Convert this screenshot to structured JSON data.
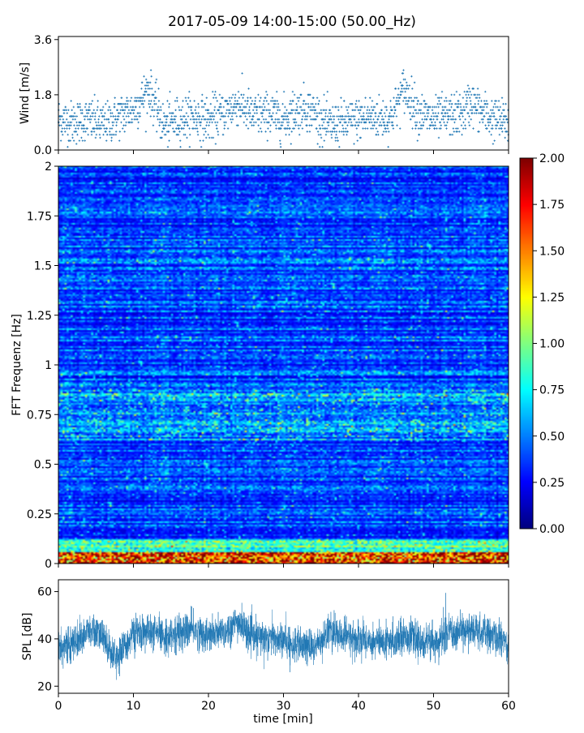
{
  "chart_data": [
    {
      "type": "scatter",
      "title": "2017-05-09 14:00-15:00 (50.00_Hz)",
      "ylabel": "Wind [m/s]",
      "xlim": [
        0,
        60
      ],
      "ylim": [
        0,
        3.7
      ],
      "yticks": [
        "0.0",
        "1.8",
        "3.6"
      ],
      "color": "#1f77b4",
      "series_profile": {
        "x": [
          0,
          2,
          4,
          6,
          8,
          10,
          11,
          12,
          13,
          14,
          16,
          18,
          20,
          22,
          24,
          26,
          28,
          30,
          32,
          33,
          34,
          36,
          38,
          40,
          42,
          44,
          45,
          46,
          47,
          48,
          50,
          52,
          54,
          55,
          56,
          58,
          60
        ],
        "y": [
          1.0,
          0.9,
          1.0,
          0.8,
          1.1,
          1.3,
          1.6,
          2.0,
          1.4,
          0.8,
          1.0,
          1.1,
          1.0,
          1.2,
          1.5,
          1.1,
          1.2,
          1.0,
          1.3,
          1.4,
          1.2,
          0.8,
          0.9,
          1.0,
          1.1,
          1.0,
          1.4,
          2.0,
          1.6,
          1.2,
          1.0,
          1.1,
          1.2,
          1.6,
          1.3,
          1.0,
          0.9
        ]
      }
    },
    {
      "type": "heatmap",
      "ylabel": "FFT Frequenz [Hz]",
      "xlim": [
        0,
        60
      ],
      "ylim": [
        0,
        2
      ],
      "yticks": [
        "0",
        "0.25",
        "0.5",
        "0.75",
        "1",
        "1.25",
        "1.5",
        "1.75",
        "2"
      ],
      "colorbar": {
        "min": 0,
        "max": 2,
        "ticks": [
          "0.00",
          "0.25",
          "0.50",
          "0.75",
          "1.00",
          "1.25",
          "1.50",
          "1.75",
          "2.00"
        ],
        "colormap": "jet"
      }
    },
    {
      "type": "line",
      "ylabel": "SPL [dB]",
      "xlabel": "time [min]",
      "xlim": [
        0,
        60
      ],
      "ylim": [
        17,
        65
      ],
      "yticks": [
        "20",
        "40",
        "60"
      ],
      "xticks": [
        "0",
        "10",
        "20",
        "30",
        "40",
        "50",
        "60"
      ],
      "color": "#1f77b4",
      "series_profile": {
        "x": [
          0,
          2,
          4,
          6,
          7,
          8,
          10,
          12,
          14,
          16,
          18,
          20,
          22,
          24,
          26,
          28,
          30,
          32,
          34,
          36,
          38,
          40,
          42,
          44,
          46,
          48,
          50,
          52,
          54,
          56,
          58,
          60
        ],
        "y": [
          36,
          38,
          43,
          41,
          34,
          33,
          42,
          43,
          41,
          42,
          44,
          41,
          43,
          47,
          40,
          41,
          39,
          37,
          36,
          43,
          41,
          40,
          39,
          38,
          42,
          39,
          38,
          42,
          44,
          43,
          41,
          38
        ]
      }
    }
  ]
}
